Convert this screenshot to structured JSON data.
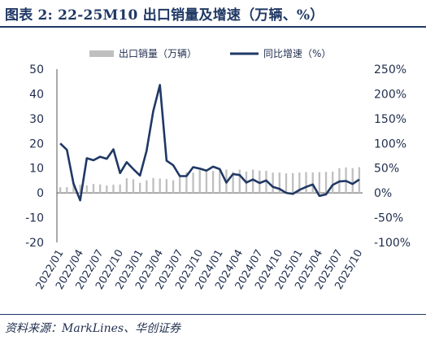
{
  "title": "图表 2:  22-25M10 出口销量及增速（万辆、%）",
  "source": "资料来源：MarkLines、华创证券",
  "colors": {
    "bar": "#bfbfbf",
    "line": "#1f3864",
    "text": "#1f2d4d"
  },
  "chart_data": {
    "type": "bar+line",
    "x_tick_labels": [
      "2022/01",
      "2022/04",
      "2022/07",
      "2022/10",
      "2023/01",
      "2023/04",
      "2023/07",
      "2023/10",
      "2024/01",
      "2024/04",
      "2024/07",
      "2024/10",
      "2025/01",
      "2025/04",
      "2025/07",
      "2025/10"
    ],
    "left_axis": {
      "ylim": [
        -20,
        50
      ],
      "ticks": [
        "50",
        "40",
        "30",
        "20",
        "10",
        "0",
        "-10",
        "-20"
      ]
    },
    "right_axis": {
      "ylim": [
        -100,
        250
      ],
      "ticks": [
        "250%",
        "200%",
        "150%",
        "100%",
        "50%",
        "0%",
        "-50%",
        "-100%"
      ]
    },
    "series": [
      {
        "name": "出口销量（万辆）",
        "type": "bar",
        "axis": "left",
        "values": [
          2.3,
          2.3,
          3.7,
          3.3,
          3.0,
          3.6,
          3.4,
          3.0,
          3.3,
          3.4,
          5.9,
          5.5,
          4.1,
          5.1,
          6.0,
          5.8,
          5.6,
          5.1,
          7.3,
          8.3,
          8.2,
          9.2,
          8.6,
          8.9,
          9.2,
          9.4,
          8.5,
          9.4,
          8.6,
          9.4,
          9.0,
          8.9,
          8.2,
          8.2,
          7.9,
          8.0,
          8.2,
          8.4,
          8.3,
          8.4,
          8.5,
          8.6,
          10.0,
          10.3,
          10.0,
          10.4
        ]
      },
      {
        "name": "同比增速（%）",
        "type": "line",
        "axis": "right",
        "values": [
          100,
          87,
          19,
          -15,
          70,
          66,
          73,
          69,
          88,
          40,
          62,
          48,
          35,
          85,
          165,
          218,
          65,
          56,
          34,
          34,
          52,
          49,
          45,
          53,
          48,
          21,
          38,
          36,
          21,
          27,
          20,
          25,
          12,
          8,
          0,
          -2,
          6,
          12,
          17,
          -6,
          -3,
          16,
          23,
          24,
          18,
          27
        ]
      }
    ],
    "legend_position": "top",
    "grid": false
  }
}
